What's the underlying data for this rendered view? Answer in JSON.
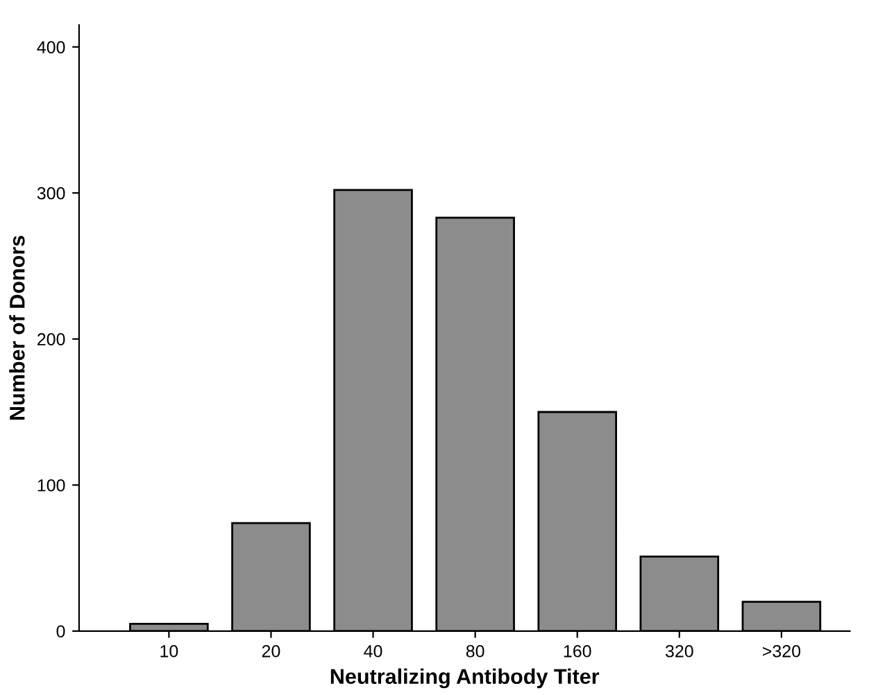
{
  "chart_data": {
    "type": "bar",
    "xlabel": "Neutralizing Antibody Titer",
    "ylabel": "Number of Donors",
    "categories": [
      "10",
      "20",
      "40",
      "80",
      "160",
      "320",
      ">320"
    ],
    "values": [
      5,
      74,
      302,
      283,
      150,
      51,
      20
    ],
    "color": "#8c8c8c",
    "ylim": [
      0,
      415
    ],
    "yticks": [
      0,
      100,
      200,
      300,
      400
    ],
    "grid": false,
    "legend": false
  }
}
